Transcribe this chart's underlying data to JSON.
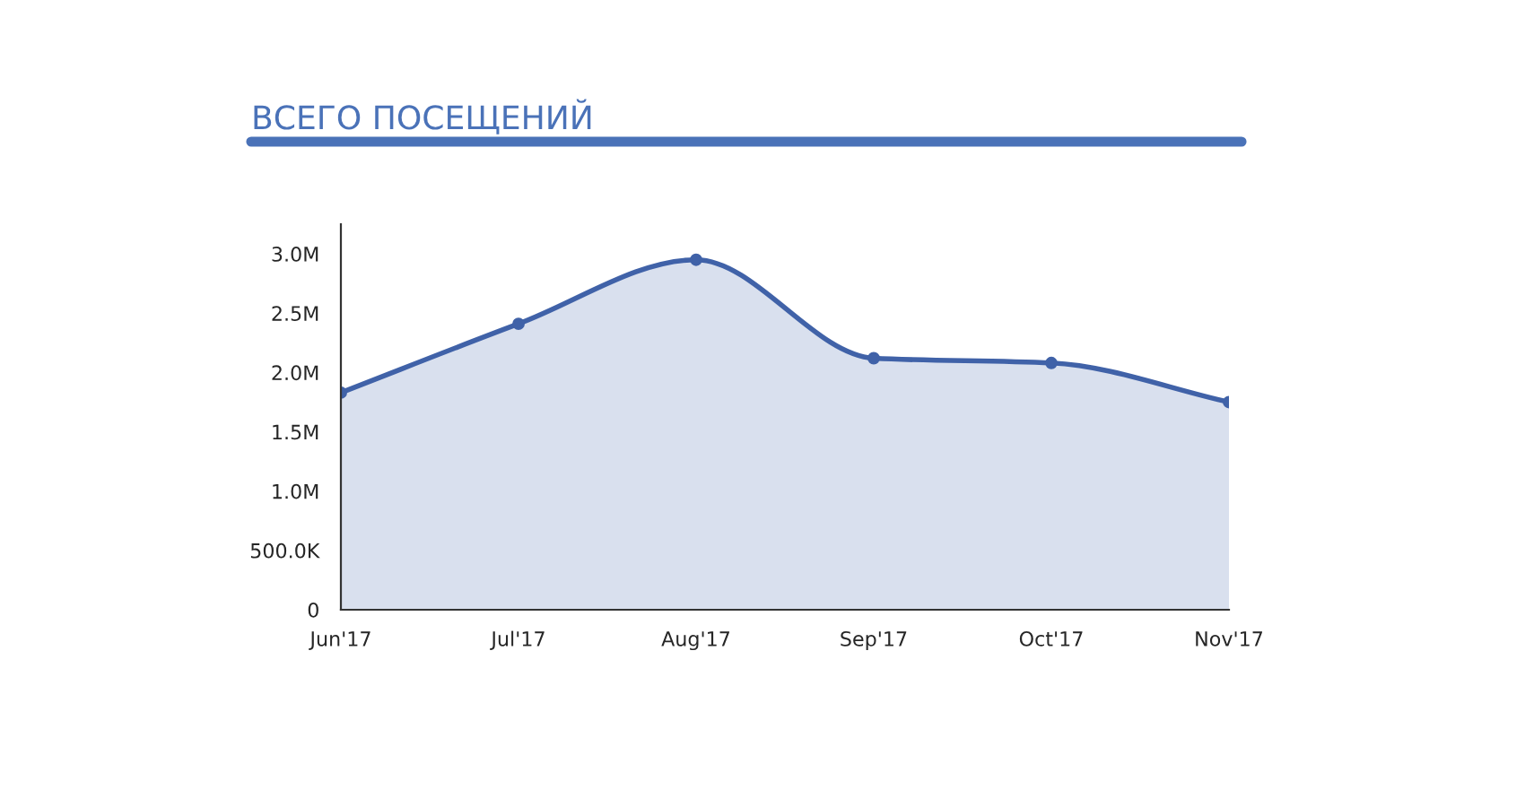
{
  "chart_data": {
    "type": "area",
    "title": "ВСЕГО ПОСЕЩЕНИЙ",
    "categories": [
      "Jun'17",
      "Jul'17",
      "Aug'17",
      "Sep'17",
      "Oct'17",
      "Nov'17"
    ],
    "series": [
      {
        "color": "#4062a8",
        "values": [
          1830000,
          2410000,
          2950000,
          2120000,
          2080000,
          1750000
        ]
      }
    ],
    "ylim": [
      0,
      3250000
    ],
    "yticks": [
      {
        "value": 0,
        "label": "0"
      },
      {
        "value": 500000,
        "label": "500.0K"
      },
      {
        "value": 1000000,
        "label": "1.0M"
      },
      {
        "value": 1500000,
        "label": "1.5M"
      },
      {
        "value": 2000000,
        "label": "2.0M"
      },
      {
        "value": 2500000,
        "label": "2.5M"
      },
      {
        "value": 3000000,
        "label": "3.0M"
      }
    ],
    "marker": "circle",
    "grid": false
  }
}
